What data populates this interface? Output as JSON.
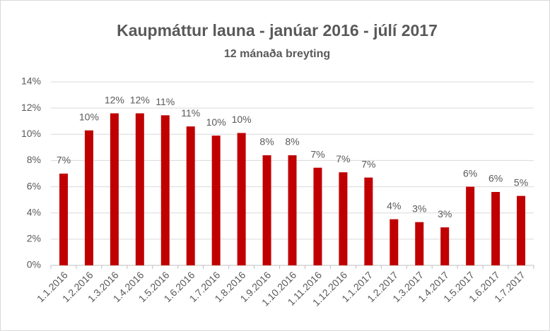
{
  "chart_data": {
    "type": "bar",
    "title": "Kaupmáttur launa - janúar 2016 - júlí 2017",
    "subtitle": "12 mánaða breyting",
    "categories": [
      "1.1.2016",
      "1.2.2016",
      "1.3.2016",
      "1.4.2016",
      "1.5.2016",
      "1.6.2016",
      "1.7.2016",
      "1.8.2016",
      "1.9.2016",
      "1.10.2016",
      "1.11.2016",
      "1.12.2016",
      "1.1.2017",
      "1.2.2017",
      "1.3.2017",
      "1.4.2017",
      "1.5.2017",
      "1.6.2017",
      "1.7.2017"
    ],
    "values": [
      7.0,
      10.3,
      11.6,
      11.6,
      11.45,
      10.6,
      9.9,
      10.1,
      8.4,
      8.4,
      7.45,
      7.1,
      6.7,
      3.52,
      3.3,
      2.9,
      6.0,
      5.6,
      5.3
    ],
    "value_labels": [
      "7%",
      "10%",
      "12%",
      "12%",
      "11%",
      "11%",
      "10%",
      "10%",
      "8%",
      "8%",
      "7%",
      "7%",
      "7%",
      "4%",
      "3%",
      "3%",
      "6%",
      "6%",
      "5%"
    ],
    "color": "#c00000",
    "ylim": [
      0,
      14
    ],
    "yticks": [
      {
        "value": 0,
        "label": "0%"
      },
      {
        "value": 2,
        "label": "2%"
      },
      {
        "value": 4,
        "label": "4%"
      },
      {
        "value": 6,
        "label": "6%"
      },
      {
        "value": 8,
        "label": "8%"
      },
      {
        "value": 10,
        "label": "10%"
      },
      {
        "value": 12,
        "label": "12%"
      },
      {
        "value": 14,
        "label": "14%"
      }
    ],
    "grid": true
  }
}
